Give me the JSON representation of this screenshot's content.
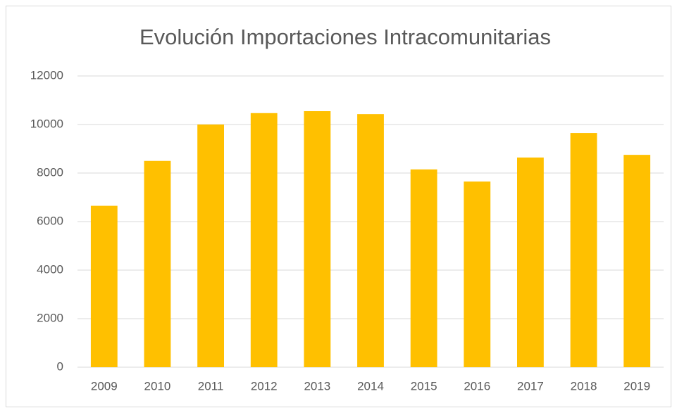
{
  "chart_data": {
    "type": "bar",
    "title": "Evolución Importaciones Intracomunitarias",
    "categories": [
      "2009",
      "2010",
      "2011",
      "2012",
      "2013",
      "2014",
      "2015",
      "2016",
      "2017",
      "2018",
      "2019"
    ],
    "values": [
      6650,
      8500,
      10000,
      10470,
      10550,
      10430,
      8150,
      7650,
      8640,
      9650,
      8750
    ],
    "color": "#ffc000",
    "ylim": [
      0,
      12000
    ],
    "yticks": [
      0,
      2000,
      4000,
      6000,
      8000,
      10000,
      12000
    ],
    "grid": true
  }
}
